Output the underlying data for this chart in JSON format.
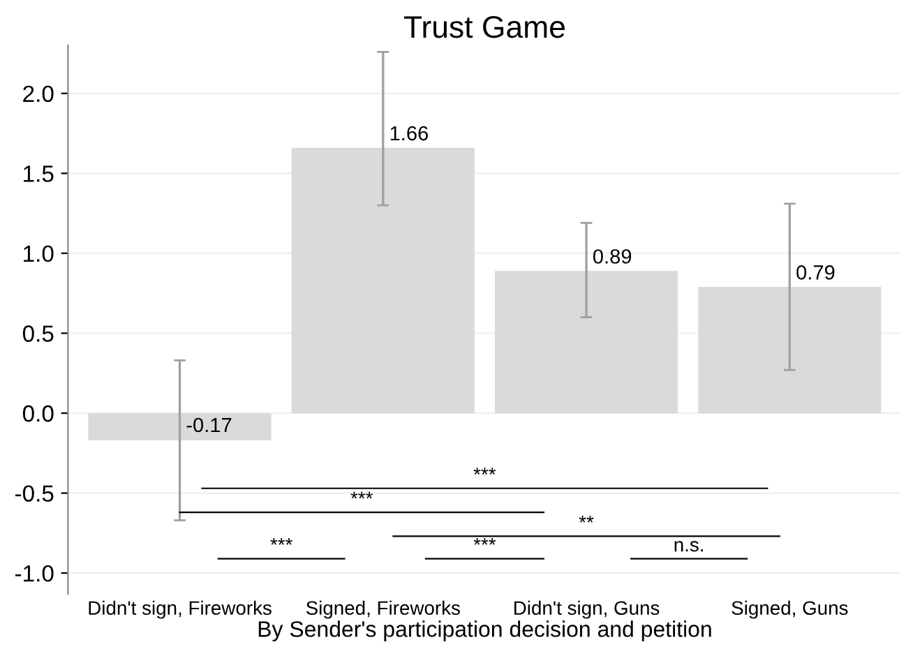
{
  "chart_data": {
    "type": "bar",
    "title": "Trust Game",
    "xlabel": "By Sender's participation decision and petition",
    "categories": [
      "Didn't sign, Fireworks",
      "Signed, Fireworks",
      "Didn't sign, Guns",
      "Signed, Guns"
    ],
    "values": [
      -0.17,
      1.66,
      0.89,
      0.79
    ],
    "color": "#dadada",
    "errors": [
      [
        -0.67,
        0.33
      ],
      [
        1.3,
        2.26
      ],
      [
        0.6,
        1.19
      ],
      [
        0.27,
        1.31
      ]
    ],
    "data_labels": true,
    "ylim": [
      -1.13,
      2.3
    ],
    "yticks": [
      {
        "value": -1,
        "label": "-1.0"
      },
      -0.5,
      {
        "value": 0,
        "label": "0.0"
      },
      0.5,
      {
        "value": 1,
        "label": "1.0"
      },
      1.5,
      {
        "value": 2,
        "label": "2.0"
      }
    ],
    "grid": "y",
    "annotations": [
      "***",
      "***",
      "**",
      "***",
      "***",
      "n.s."
    ]
  }
}
